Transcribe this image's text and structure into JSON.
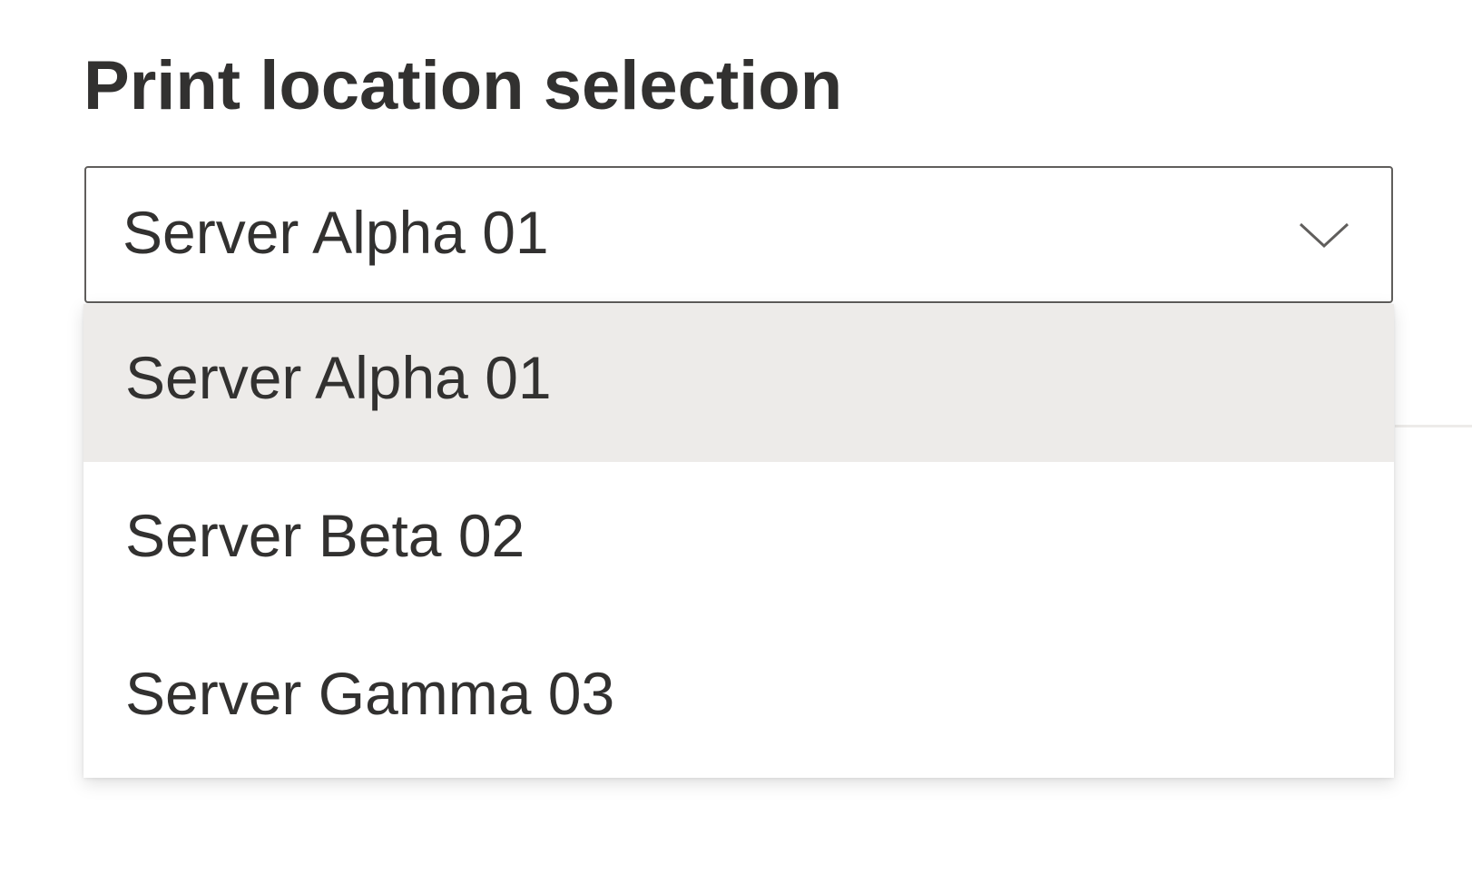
{
  "title": "Print location selection",
  "dropdown": {
    "selected": "Server Alpha 01",
    "icon": "chevron-down-icon",
    "options": [
      {
        "label": "Server Alpha 01",
        "selected": true
      },
      {
        "label": "Server Beta 02",
        "selected": false
      },
      {
        "label": "Server Gamma 03",
        "selected": false
      }
    ]
  },
  "colors": {
    "text": "#323130",
    "border": "#605e5c",
    "selected_bg": "#edebe9"
  }
}
